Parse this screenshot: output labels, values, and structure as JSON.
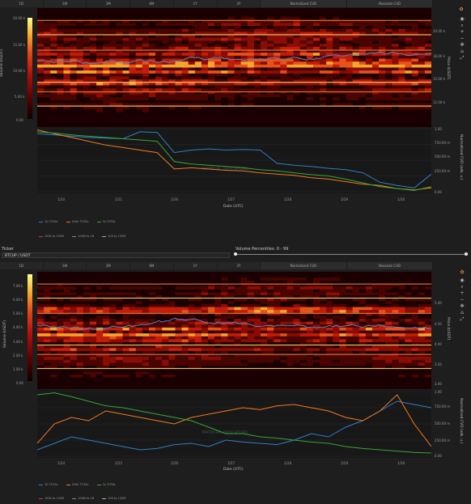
{
  "toolbar": {
    "timeframes": [
      "1D",
      "1W",
      "1M",
      "6M",
      "1Y",
      "3Y"
    ],
    "modes": [
      "Normalized CVD",
      "Absolute CVD"
    ]
  },
  "ticker": {
    "label": "Ticker",
    "value": "BTCUP / USDT"
  },
  "volume_percentiles": {
    "label": "Volume Percentiles: 0 - 99"
  },
  "icons": [
    "camera-icon",
    "zoom-icon",
    "plus-icon",
    "minus-icon",
    "pan-icon",
    "reset-icon",
    "autoscale-icon",
    "plotly-logo-icon"
  ],
  "colors": {
    "heat_low": "#140000",
    "heat_mid": "#c21d0a",
    "heat_high": "#ffff66",
    "line_blue": "#2f7ec9",
    "line_orange": "#f07a20",
    "line_green": "#3aa53a",
    "price_line": "#5a86c8"
  },
  "chart_data": [
    {
      "type": "heatmap",
      "ylabel": "Price (USDT)",
      "colorbar_label": "Volume (USDT)",
      "colorbar_ticks": [
        "0.00",
        "5.00 k",
        "10.00 k",
        "15.00 k",
        "20.00 k"
      ],
      "colorbar_ticks_printed": [
        "0.00",
        "5.00 k",
        "10.00 k",
        "15.00 k",
        "20.00 k"
      ],
      "y_ticks": [
        "12.00 k",
        "15.00 k",
        "18.00 k",
        "20.00 k"
      ]
    },
    {
      "type": "line",
      "xlabel": "Date (UTC)",
      "ylabel": "Normalized CVD (arb. u.)",
      "x_ticks": [
        "1/20",
        "1/21",
        "1/26",
        "1/27",
        "1/28",
        "1/29",
        "1/30"
      ],
      "y_ticks": [
        "0.00",
        "250.00 m",
        "500.00 m",
        "750.00 m",
        "1.00"
      ],
      "watermark": "MATERIAL INDICATORS",
      "series": [
        {
          "name": "10 TOTAL",
          "values": [
            0.92,
            0.9,
            0.88,
            0.86,
            0.85,
            0.84,
            0.95,
            0.94,
            0.62,
            0.66,
            0.68,
            0.66,
            0.67,
            0.66,
            0.45,
            0.42,
            0.4,
            0.37,
            0.35,
            0.3,
            0.15,
            0.1,
            0.06,
            0.28
          ]
        },
        {
          "name": "100k TOTAL",
          "values": [
            0.98,
            0.92,
            0.86,
            0.8,
            0.74,
            0.7,
            0.66,
            0.62,
            0.36,
            0.38,
            0.36,
            0.34,
            0.33,
            0.3,
            0.28,
            0.26,
            0.22,
            0.2,
            0.16,
            0.12,
            0.1,
            0.05,
            0.03,
            0.06
          ]
        },
        {
          "name": "1k TOTAL",
          "values": [
            0.95,
            0.93,
            0.9,
            0.88,
            0.86,
            0.84,
            0.82,
            0.8,
            0.48,
            0.44,
            0.42,
            0.4,
            0.38,
            0.35,
            0.33,
            0.3,
            0.27,
            0.25,
            0.2,
            0.14,
            0.08,
            0.05,
            0.02,
            0.08
          ]
        }
      ]
    },
    {
      "type": "heatmap",
      "ylabel": "Price (USDT)",
      "colorbar_label": "Volume (USDT)",
      "colorbar_ticks": [
        "0.00",
        "1.00 k",
        "2.00 k",
        "3.00 k",
        "4.00 k",
        "5.00 k",
        "6.00 k",
        "7.00 k"
      ],
      "y_ticks": [
        "3.00",
        "3.50",
        "4.00",
        "4.50",
        "5.00"
      ]
    },
    {
      "type": "line",
      "xlabel": "Date (UTC)",
      "ylabel": "Normalized CVD (arb. u.)",
      "x_ticks": [
        "1/24",
        "1/25",
        "1/26",
        "1/27",
        "1/28",
        "1/29",
        "1/30"
      ],
      "y_ticks": [
        "0.00",
        "250.00 m",
        "500.00 m",
        "750.00 m",
        "1.00"
      ],
      "watermark": "MATERIAL INDICATORS",
      "series": [
        {
          "name": "10 TOTAL",
          "values": [
            0.1,
            0.2,
            0.3,
            0.25,
            0.2,
            0.15,
            0.1,
            0.12,
            0.18,
            0.2,
            0.15,
            0.25,
            0.22,
            0.2,
            0.18,
            0.25,
            0.35,
            0.3,
            0.45,
            0.55,
            0.7,
            0.85,
            0.8,
            0.75
          ]
        },
        {
          "name": "100k TOTAL",
          "values": [
            0.2,
            0.5,
            0.6,
            0.55,
            0.7,
            0.65,
            0.6,
            0.55,
            0.5,
            0.6,
            0.65,
            0.7,
            0.75,
            0.72,
            0.78,
            0.8,
            0.75,
            0.7,
            0.6,
            0.55,
            0.7,
            0.95,
            0.5,
            0.15
          ]
        },
        {
          "name": "1k TOTAL",
          "values": [
            0.95,
            0.98,
            0.92,
            0.85,
            0.78,
            0.75,
            0.7,
            0.65,
            0.6,
            0.55,
            0.45,
            0.35,
            0.35,
            0.3,
            0.28,
            0.25,
            0.22,
            0.2,
            0.15,
            0.12,
            0.1,
            0.08,
            0.06,
            0.05
          ]
        }
      ]
    }
  ],
  "legend": {
    "row1": [
      "10 TOTAL",
      "100k TOTAL",
      "1k TOTAL"
    ],
    "row2": [
      "100k to 100M",
      "100M to 1B",
      "100 to 100M"
    ]
  }
}
